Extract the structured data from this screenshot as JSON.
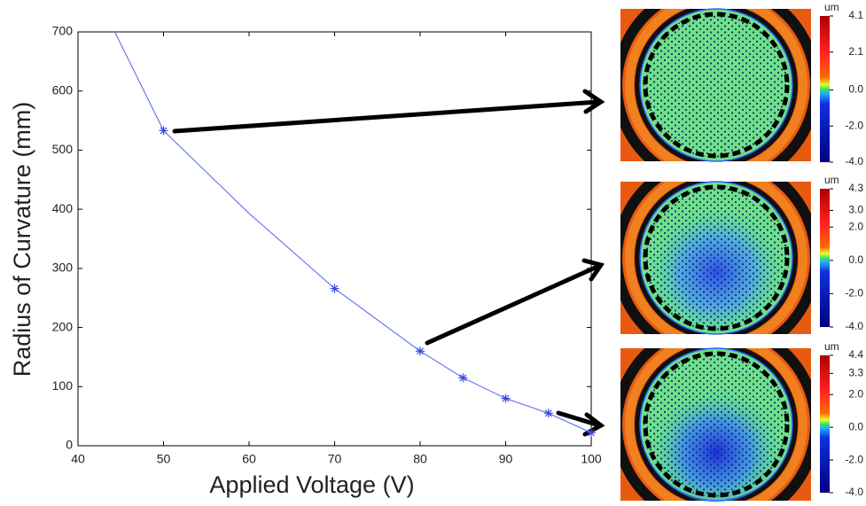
{
  "chart_data": {
    "type": "line",
    "xlabel": "Applied Voltage (V)",
    "ylabel": "Radius of Curvature (mm)",
    "xlim": [
      40,
      100
    ],
    "ylim": [
      0,
      700
    ],
    "xticks": [
      40,
      50,
      60,
      70,
      80,
      90,
      100
    ],
    "yticks": [
      0,
      100,
      200,
      300,
      400,
      500,
      600,
      700
    ],
    "series": [
      {
        "color": "#6a78f0",
        "marker": "none",
        "x": [
          44.3,
          50,
          60,
          70,
          80,
          85,
          90,
          95,
          100
        ],
        "values": [
          700,
          533,
          393,
          266,
          160,
          115,
          80,
          55,
          22
        ]
      },
      {
        "color": "#3a4ae0",
        "marker": "star",
        "line": false,
        "x": [
          50,
          70,
          80,
          85,
          90,
          95,
          100
        ],
        "values": [
          533,
          266,
          160,
          115,
          80,
          55,
          22
        ]
      }
    ]
  },
  "insets": [
    {
      "unit": "um",
      "clim": [
        -4.0,
        4.1
      ],
      "ticks": [
        4.1,
        2.1,
        {
          "value": 0,
          "label": "0.0"
        },
        {
          "value": -2,
          "label": "-2.0"
        },
        {
          "value": -4,
          "label": "-4.0"
        }
      ]
    },
    {
      "unit": "um",
      "clim": [
        -4.0,
        4.3
      ],
      "ticks": [
        4.3,
        {
          "value": 3,
          "label": "3.0"
        },
        {
          "value": 2,
          "label": "2.0"
        },
        {
          "value": 0,
          "label": "0.0"
        },
        {
          "value": -2,
          "label": "-2.0"
        },
        {
          "value": -4,
          "label": "-4.0"
        }
      ]
    },
    {
      "unit": "um",
      "clim": [
        -4.0,
        4.4
      ],
      "ticks": [
        4.4,
        3.3,
        {
          "value": 2,
          "label": "2.0"
        },
        {
          "value": 0,
          "label": "0.0"
        },
        {
          "value": -2,
          "label": "-2.0"
        },
        {
          "value": -4,
          "label": "-4.0"
        }
      ]
    }
  ]
}
